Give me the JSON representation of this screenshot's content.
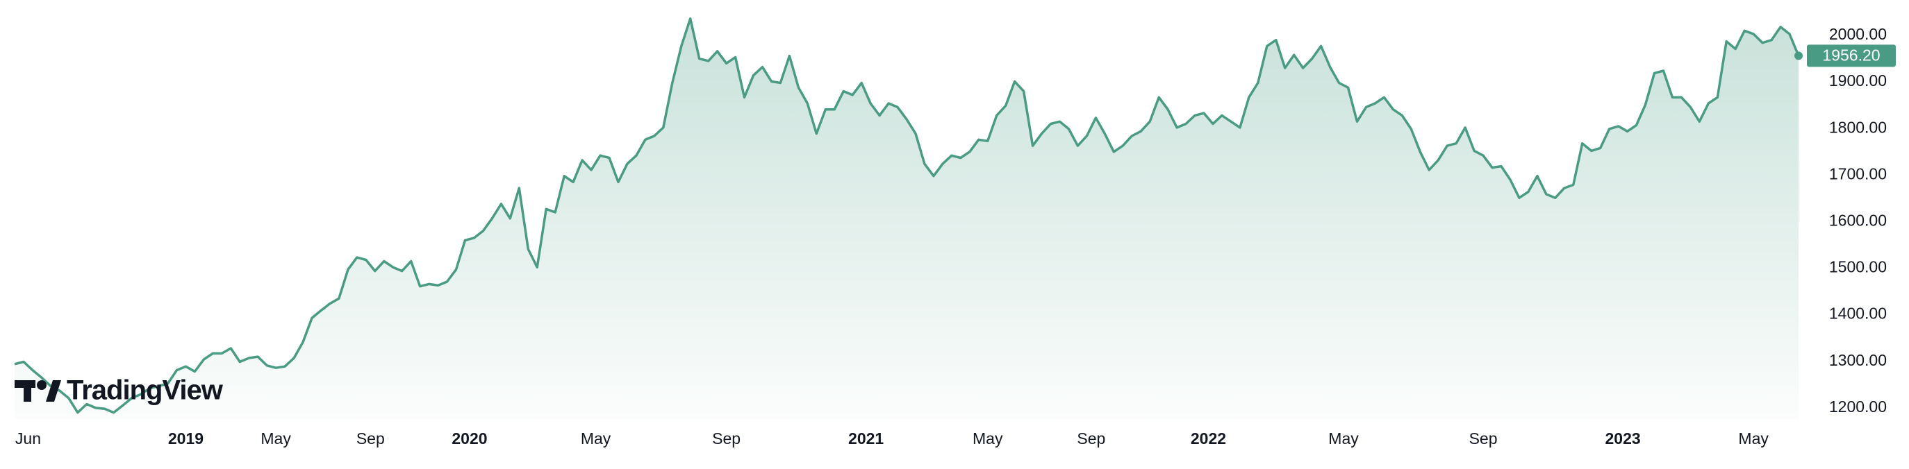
{
  "chart_data": {
    "type": "area",
    "watermark": "TradingView",
    "series": [
      {
        "color": "#4a9b83",
        "values": [
          1294,
          1299,
          1281,
          1265,
          1247,
          1237,
          1221,
          1190,
          1208,
          1200,
          1198,
          1190,
          1205,
          1221,
          1229,
          1242,
          1247,
          1252,
          1281,
          1289,
          1278,
          1304,
          1317,
          1317,
          1328,
          1299,
          1307,
          1310,
          1291,
          1286,
          1289,
          1307,
          1341,
          1393,
          1409,
          1424,
          1435,
          1497,
          1523,
          1518,
          1494,
          1515,
          1502,
          1494,
          1515,
          1461,
          1466,
          1463,
          1471,
          1497,
          1560,
          1565,
          1580,
          1607,
          1638,
          1607,
          1672,
          1541,
          1502,
          1627,
          1620,
          1698,
          1685,
          1732,
          1711,
          1742,
          1737,
          1685,
          1724,
          1742,
          1776,
          1784,
          1802,
          1898,
          1977,
          2036,
          1950,
          1945,
          1966,
          1940,
          1953,
          1867,
          1914,
          1932,
          1901,
          1898,
          1956,
          1888,
          1854,
          1789,
          1841,
          1841,
          1880,
          1872,
          1898,
          1854,
          1828,
          1854,
          1846,
          1820,
          1789,
          1724,
          1698,
          1724,
          1742,
          1737,
          1750,
          1776,
          1773,
          1828,
          1849,
          1901,
          1880,
          1763,
          1789,
          1810,
          1815,
          1799,
          1763,
          1784,
          1823,
          1789,
          1750,
          1763,
          1784,
          1794,
          1815,
          1867,
          1841,
          1802,
          1810,
          1828,
          1833,
          1810,
          1828,
          1815,
          1802,
          1867,
          1898,
          1977,
          1990,
          1930,
          1958,
          1930,
          1950,
          1977,
          1932,
          1898,
          1888,
          1815,
          1846,
          1854,
          1867,
          1841,
          1828,
          1799,
          1750,
          1711,
          1732,
          1763,
          1768,
          1802,
          1752,
          1742,
          1716,
          1719,
          1690,
          1651,
          1664,
          1698,
          1659,
          1651,
          1672,
          1679,
          1768,
          1752,
          1758,
          1799,
          1805,
          1794,
          1807,
          1851,
          1919,
          1924,
          1867,
          1867,
          1846,
          1815,
          1854,
          1867,
          1987,
          1971,
          2010,
          2003,
          1984,
          1990,
          2018,
          2003,
          1956.2
        ]
      }
    ],
    "last_price": {
      "value": 1956.2,
      "label": "1956.20"
    },
    "xlim": [
      0,
      198
    ],
    "xticks": [
      {
        "value": 1.5,
        "label": "Jun"
      },
      {
        "value": 19,
        "label": "2019"
      },
      {
        "value": 29,
        "label": "May"
      },
      {
        "value": 39.5,
        "label": "Sep"
      },
      {
        "value": 50.5,
        "label": "2020"
      },
      {
        "value": 64.5,
        "label": "May"
      },
      {
        "value": 79,
        "label": "Sep"
      },
      {
        "value": 94.5,
        "label": "2021"
      },
      {
        "value": 108,
        "label": "May"
      },
      {
        "value": 119.5,
        "label": "Sep"
      },
      {
        "value": 132.5,
        "label": "2022"
      },
      {
        "value": 147.5,
        "label": "May"
      },
      {
        "value": 163,
        "label": "Sep"
      },
      {
        "value": 178.5,
        "label": "2023"
      },
      {
        "value": 193,
        "label": "May"
      }
    ],
    "ylim": [
      1176,
      2076
    ],
    "yticks": [
      {
        "value": 1200,
        "label": "1200.00"
      },
      {
        "value": 1300,
        "label": "1300.00"
      },
      {
        "value": 1400,
        "label": "1400.00"
      },
      {
        "value": 1500,
        "label": "1500.00"
      },
      {
        "value": 1600,
        "label": "1600.00"
      },
      {
        "value": 1700,
        "label": "1700.00"
      },
      {
        "value": 1800,
        "label": "1800.00"
      },
      {
        "value": 1900,
        "label": "1900.00"
      },
      {
        "value": 2000,
        "label": "2000.00"
      }
    ],
    "grid": false
  }
}
